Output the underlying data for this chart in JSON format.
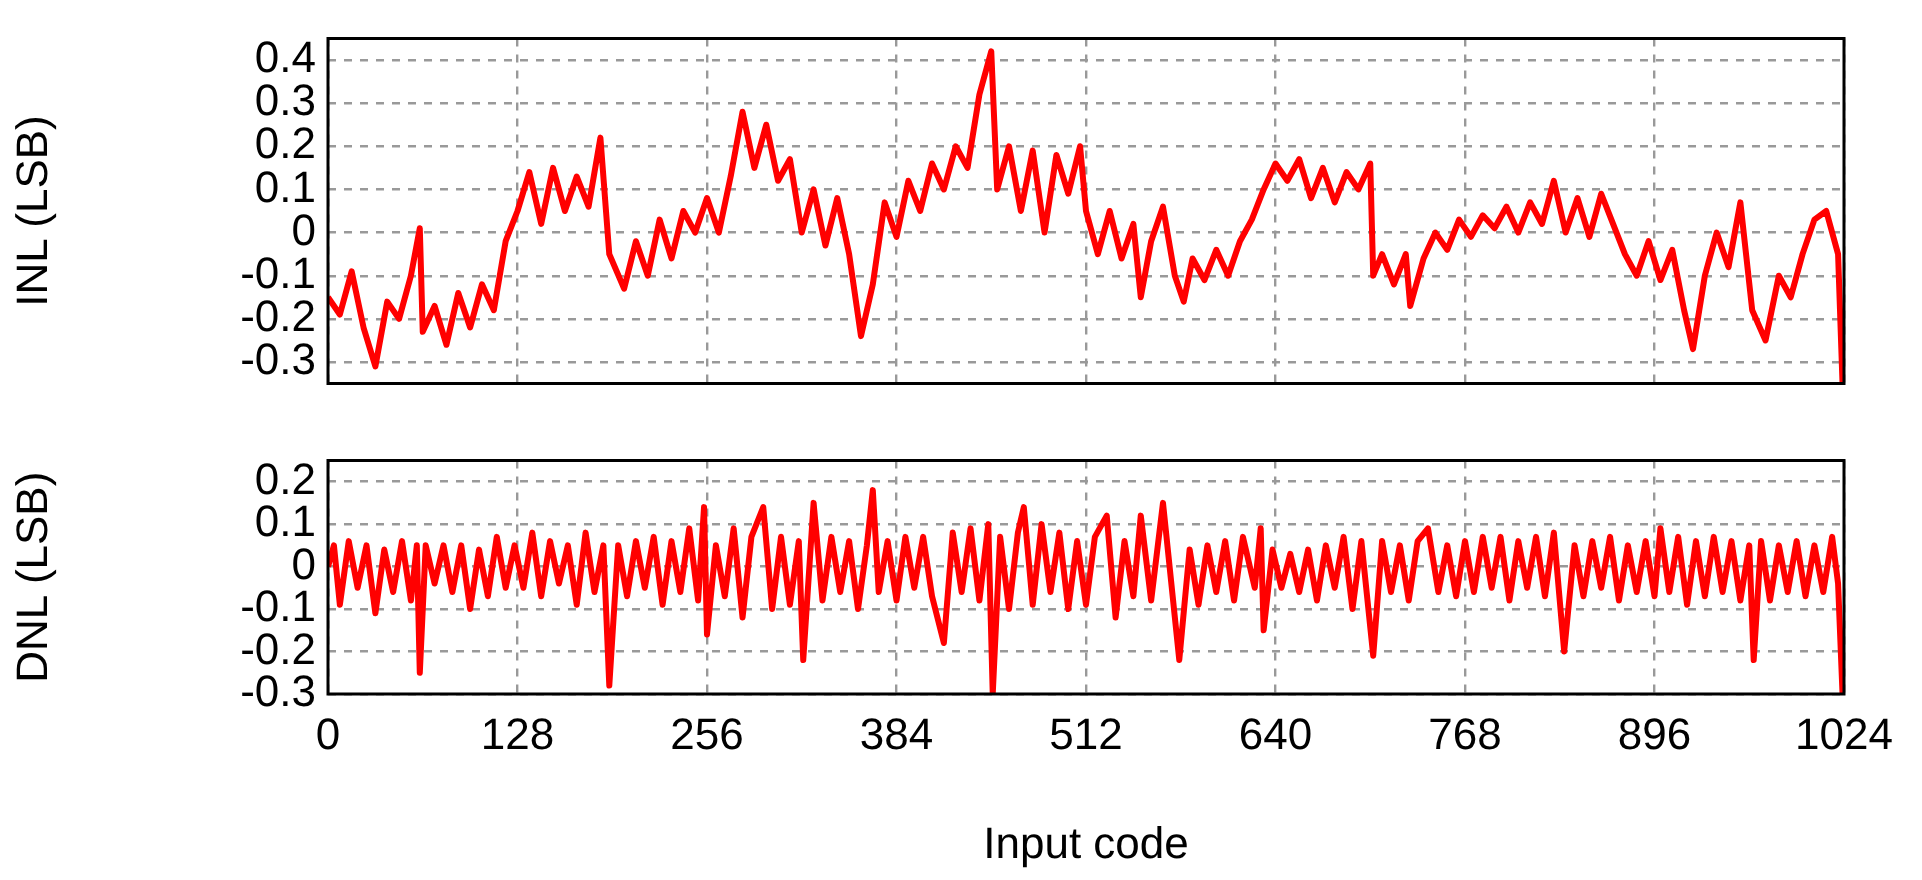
{
  "chart_data": [
    {
      "type": "line",
      "ylabel": "INL (LSB)",
      "xlim": [
        0,
        1024
      ],
      "xticks": [
        0,
        128,
        256,
        384,
        512,
        640,
        768,
        896,
        1024
      ],
      "ylim": [
        -0.35,
        0.45
      ],
      "yticks": [
        -0.3,
        -0.2,
        -0.1,
        0,
        0.1,
        0.2,
        0.3,
        0.4
      ],
      "grid": true,
      "legend": false,
      "marker": "none",
      "line_style": "solid",
      "tick_labels": "y",
      "series": [
        {
          "color": "#ff0000",
          "x": [
            0,
            8,
            16,
            24,
            32,
            40,
            48,
            56,
            62,
            64,
            72,
            80,
            88,
            96,
            104,
            112,
            120,
            128,
            136,
            144,
            152,
            160,
            168,
            176,
            184,
            190,
            200,
            208,
            216,
            224,
            232,
            240,
            248,
            256,
            264,
            272,
            280,
            288,
            296,
            304,
            312,
            320,
            328,
            336,
            344,
            352,
            360,
            368,
            376,
            384,
            392,
            400,
            408,
            416,
            424,
            432,
            440,
            448,
            452,
            460,
            468,
            476,
            484,
            492,
            500,
            508,
            512,
            520,
            528,
            536,
            544,
            549,
            556,
            564,
            572,
            578,
            584,
            592,
            600,
            608,
            616,
            624,
            632,
            640,
            648,
            656,
            664,
            672,
            680,
            688,
            696,
            704,
            706,
            712,
            720,
            728,
            731,
            740,
            748,
            756,
            764,
            772,
            780,
            788,
            796,
            804,
            812,
            820,
            828,
            836,
            844,
            852,
            860,
            868,
            876,
            884,
            892,
            900,
            908,
            916,
            922,
            930,
            938,
            946,
            954,
            962,
            971,
            980,
            988,
            996,
            1004,
            1012,
            1020,
            1023
          ],
          "values": [
            -0.15,
            -0.19,
            -0.09,
            -0.22,
            -0.31,
            -0.16,
            -0.2,
            -0.1,
            0.01,
            -0.23,
            -0.17,
            -0.26,
            -0.14,
            -0.22,
            -0.12,
            -0.18,
            -0.02,
            0.05,
            0.14,
            0.02,
            0.15,
            0.05,
            0.13,
            0.06,
            0.22,
            -0.05,
            -0.13,
            -0.02,
            -0.1,
            0.03,
            -0.06,
            0.05,
            0.0,
            0.08,
            0.0,
            0.13,
            0.28,
            0.15,
            0.25,
            0.12,
            0.17,
            0.0,
            0.1,
            -0.03,
            0.08,
            -0.05,
            -0.24,
            -0.12,
            0.07,
            -0.01,
            0.12,
            0.05,
            0.16,
            0.1,
            0.2,
            0.15,
            0.32,
            0.42,
            0.1,
            0.2,
            0.05,
            0.19,
            0.0,
            0.18,
            0.09,
            0.2,
            0.05,
            -0.05,
            0.05,
            -0.06,
            0.02,
            -0.15,
            -0.02,
            0.06,
            -0.1,
            -0.16,
            -0.06,
            -0.11,
            -0.04,
            -0.1,
            -0.02,
            0.03,
            0.1,
            0.16,
            0.12,
            0.17,
            0.08,
            0.15,
            0.07,
            0.14,
            0.1,
            0.16,
            -0.1,
            -0.05,
            -0.12,
            -0.05,
            -0.17,
            -0.06,
            0.0,
            -0.04,
            0.03,
            -0.01,
            0.04,
            0.01,
            0.06,
            0.0,
            0.07,
            0.02,
            0.12,
            0.0,
            0.08,
            -0.01,
            0.09,
            0.02,
            -0.05,
            -0.1,
            -0.02,
            -0.11,
            -0.04,
            -0.18,
            -0.27,
            -0.1,
            0.0,
            -0.08,
            0.07,
            -0.18,
            -0.25,
            -0.1,
            -0.15,
            -0.05,
            0.03,
            0.05,
            -0.05,
            -0.35
          ]
        }
      ]
    },
    {
      "type": "line",
      "xlabel": "Input code",
      "ylabel": "DNL (LSB)",
      "xlim": [
        0,
        1024
      ],
      "xticks": [
        0,
        128,
        256,
        384,
        512,
        640,
        768,
        896,
        1024
      ],
      "ylim": [
        -0.3,
        0.25
      ],
      "yticks": [
        -0.3,
        -0.2,
        -0.1,
        0,
        0.1,
        0.2
      ],
      "grid": true,
      "legend": false,
      "marker": "none",
      "line_style": "solid",
      "series": [
        {
          "color": "#ff0000",
          "x": [
            0,
            4,
            8,
            14,
            20,
            26,
            32,
            38,
            44,
            50,
            56,
            60,
            62,
            66,
            72,
            78,
            84,
            90,
            96,
            102,
            108,
            114,
            120,
            126,
            132,
            138,
            144,
            150,
            156,
            162,
            168,
            174,
            180,
            186,
            190,
            196,
            202,
            208,
            214,
            220,
            226,
            232,
            238,
            244,
            250,
            254,
            256,
            262,
            268,
            274,
            280,
            286,
            294,
            300,
            306,
            312,
            318,
            321,
            328,
            334,
            340,
            346,
            352,
            358,
            364,
            368,
            372,
            378,
            384,
            390,
            396,
            402,
            408,
            416,
            422,
            428,
            434,
            440,
            446,
            449,
            454,
            460,
            466,
            470,
            476,
            482,
            488,
            494,
            500,
            506,
            512,
            518,
            526,
            532,
            538,
            544,
            549,
            556,
            564,
            575,
            582,
            588,
            594,
            600,
            606,
            612,
            618,
            626,
            630,
            632,
            638,
            644,
            650,
            656,
            662,
            668,
            674,
            680,
            686,
            692,
            698,
            706,
            712,
            718,
            724,
            730,
            736,
            743,
            750,
            756,
            762,
            768,
            774,
            780,
            786,
            792,
            798,
            804,
            810,
            816,
            822,
            828,
            835,
            842,
            848,
            854,
            860,
            866,
            872,
            878,
            884,
            890,
            896,
            900,
            906,
            912,
            918,
            924,
            930,
            936,
            942,
            948,
            954,
            960,
            963,
            968,
            974,
            980,
            986,
            992,
            998,
            1004,
            1010,
            1016,
            1020,
            1023
          ],
          "values": [
            0.0,
            0.05,
            -0.09,
            0.06,
            -0.05,
            0.05,
            -0.11,
            0.04,
            -0.06,
            0.06,
            -0.08,
            0.05,
            -0.25,
            0.05,
            -0.04,
            0.05,
            -0.06,
            0.05,
            -0.1,
            0.04,
            -0.07,
            0.07,
            -0.05,
            0.05,
            -0.05,
            0.08,
            -0.07,
            0.06,
            -0.04,
            0.05,
            -0.09,
            0.08,
            -0.06,
            0.05,
            -0.28,
            0.05,
            -0.07,
            0.06,
            -0.05,
            0.07,
            -0.09,
            0.06,
            -0.06,
            0.09,
            -0.08,
            0.14,
            -0.16,
            0.05,
            -0.07,
            0.09,
            -0.12,
            0.07,
            0.14,
            -0.1,
            0.07,
            -0.09,
            0.06,
            -0.22,
            0.15,
            -0.08,
            0.07,
            -0.06,
            0.06,
            -0.1,
            0.05,
            0.18,
            -0.06,
            0.06,
            -0.08,
            0.07,
            -0.05,
            0.07,
            -0.07,
            -0.18,
            0.08,
            -0.06,
            0.09,
            -0.08,
            0.1,
            -0.3,
            0.07,
            -0.1,
            0.08,
            0.14,
            -0.09,
            0.1,
            -0.06,
            0.08,
            -0.1,
            0.06,
            -0.09,
            0.07,
            0.12,
            -0.12,
            0.06,
            -0.07,
            0.12,
            -0.08,
            0.15,
            -0.22,
            0.04,
            -0.09,
            0.05,
            -0.06,
            0.06,
            -0.08,
            0.07,
            -0.05,
            0.09,
            -0.15,
            0.04,
            -0.05,
            0.03,
            -0.06,
            0.04,
            -0.08,
            0.05,
            -0.05,
            0.07,
            -0.1,
            0.06,
            -0.21,
            0.06,
            -0.06,
            0.05,
            -0.08,
            0.06,
            0.09,
            -0.06,
            0.05,
            -0.07,
            0.06,
            -0.06,
            0.07,
            -0.05,
            0.07,
            -0.08,
            0.06,
            -0.05,
            0.07,
            -0.07,
            0.08,
            -0.2,
            0.05,
            -0.07,
            0.06,
            -0.05,
            0.07,
            -0.08,
            0.05,
            -0.06,
            0.06,
            -0.07,
            0.09,
            -0.06,
            0.07,
            -0.09,
            0.06,
            -0.07,
            0.07,
            -0.06,
            0.06,
            -0.08,
            0.05,
            -0.22,
            0.06,
            -0.08,
            0.05,
            -0.06,
            0.06,
            -0.07,
            0.05,
            -0.06,
            0.07,
            -0.04,
            -0.3
          ]
        }
      ]
    }
  ]
}
